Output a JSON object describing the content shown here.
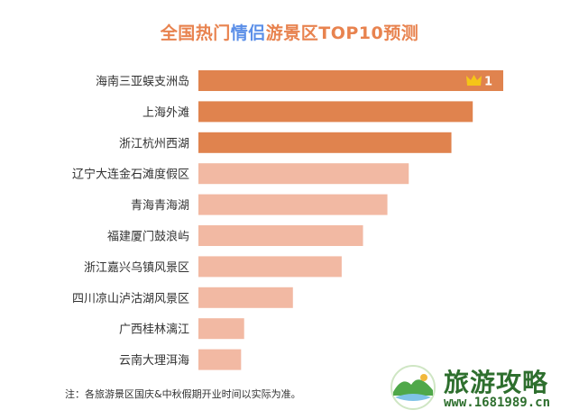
{
  "title": {
    "part1": "全国热门",
    "part2": "情侣",
    "part3": "游景区TOP10预测"
  },
  "footnote": "注：各旅游景区国庆&中秋假期开业时间以实际为准。",
  "watermark": {
    "main": "旅游攻略",
    "sub": "www.1681989.cn"
  },
  "crown_badge": {
    "icon": "crown-icon",
    "rank": "1"
  },
  "colors": {
    "top_bar": "#e0834e",
    "other_bar": "#f2b9a3",
    "title_orange": "#e8834f",
    "title_blue": "#5b8fe8",
    "crown": "#f5c518"
  },
  "chart_data": {
    "type": "bar",
    "orientation": "horizontal",
    "categories": [
      "海南三亚蜈支洲岛",
      "上海外滩",
      "浙江杭州西湖",
      "辽宁大连金石滩度假区",
      "青海青海湖",
      "福建厦门鼓浪屿",
      "浙江嘉兴乌镇风景区",
      "四川凉山泸沽湖风景区",
      "广西桂林漓江",
      "云南大理洱海"
    ],
    "values": [
      100,
      90,
      83,
      69,
      62,
      54,
      47,
      31,
      15,
      14
    ],
    "highlight_top": 3,
    "xlim": [
      0,
      100
    ],
    "grid": false,
    "legend": "none"
  }
}
